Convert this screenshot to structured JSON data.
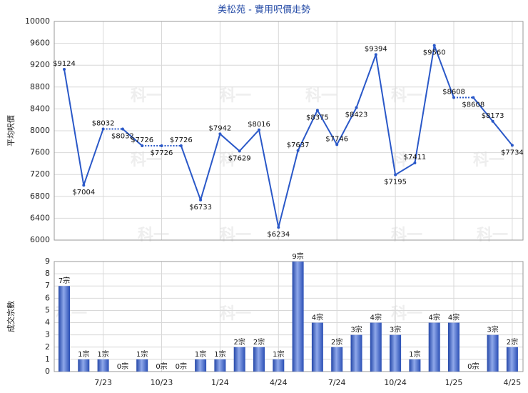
{
  "chart_data": [
    {
      "type": "line",
      "title": "美松苑 - 實用呎價走勢",
      "y_label": "平均呎價",
      "color": "#2a58c8",
      "grid": true,
      "values": [
        9124,
        7004,
        8032,
        8032,
        7726,
        7726,
        7726,
        6733,
        7942,
        7629,
        8016,
        6234,
        7637,
        8375,
        7746,
        8423,
        9394,
        7195,
        7411,
        9560,
        8608,
        8608,
        8173,
        7734
      ],
      "value_labels": [
        "$9124",
        "$7004",
        "$8032",
        "$8032",
        "$7726",
        "$7726",
        "$7726",
        "$6733",
        "$7942",
        "$7629",
        "$8016",
        "$6234",
        "$7637",
        "$8375",
        "$7746",
        "$8423",
        "$9394",
        "$7195",
        "$7411",
        "$9560",
        "$8608",
        "$8608",
        "$8173",
        "$7734"
      ],
      "ylim": [
        6000,
        10000
      ],
      "yticks": [
        6000,
        6400,
        6800,
        7200,
        7600,
        8000,
        8400,
        8800,
        9200,
        9600,
        10000
      ]
    },
    {
      "type": "bar",
      "y_label": "成交宗數",
      "color": "#3b62c9",
      "grid": true,
      "categories": [
        null,
        null,
        "7/23",
        null,
        null,
        "10/23",
        null,
        null,
        "1/24",
        null,
        null,
        "4/24",
        null,
        null,
        "7/24",
        null,
        null,
        "10/24",
        null,
        null,
        "1/25",
        null,
        null,
        "4/25"
      ],
      "values": [
        7,
        1,
        1,
        0,
        1,
        0,
        0,
        1,
        1,
        2,
        2,
        1,
        9,
        4,
        2,
        3,
        4,
        3,
        1,
        4,
        4,
        0,
        3,
        2
      ],
      "value_labels": [
        "7宗",
        "1宗",
        "1宗",
        "0宗",
        "1宗",
        "0宗",
        "0宗",
        "1宗",
        "1宗",
        "2宗",
        "2宗",
        "1宗",
        "9宗",
        "4宗",
        "2宗",
        "3宗",
        "4宗",
        "3宗",
        "1宗",
        "4宗",
        "4宗",
        "0宗",
        "3宗",
        "2宗"
      ],
      "ylim": [
        0,
        9
      ],
      "yticks": [
        0,
        1,
        2,
        3,
        4,
        5,
        6,
        7,
        8,
        9
      ]
    }
  ],
  "watermark": "科一"
}
